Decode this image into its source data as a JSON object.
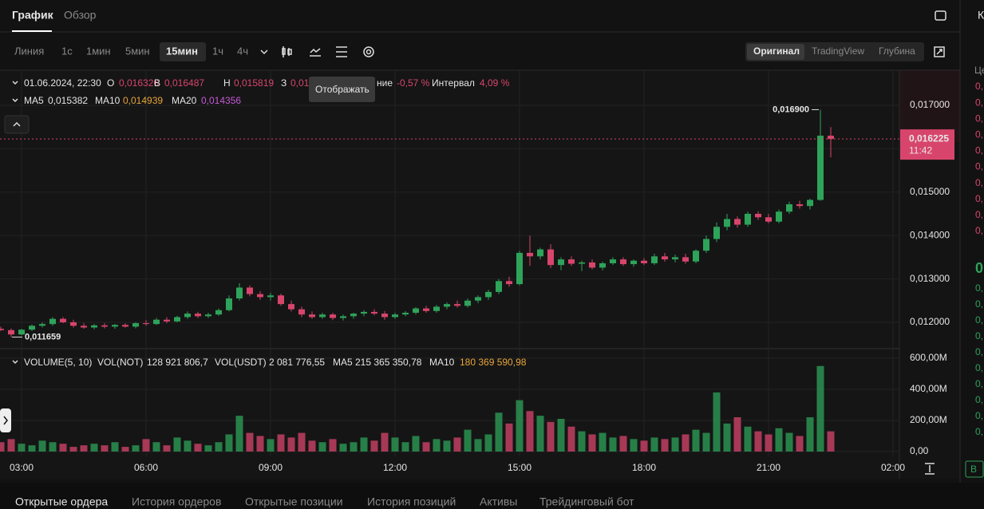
{
  "tabs": [
    "График",
    "Обзор"
  ],
  "timeframes": [
    "Линия",
    "1с",
    "1мин",
    "5мин",
    "15мин",
    "1ч",
    "4ч"
  ],
  "views": [
    "Оригинал",
    "TradingView",
    "Глубина"
  ],
  "tooltip": "Отображать",
  "legend": {
    "date": "01.06.2024, 22:30",
    "o_label": "O",
    "o": "0,016326",
    "h_label": "В",
    "h": "0,016487",
    "l_label": "Н",
    "l": "0,015819",
    "c_label": "З",
    "c": "0,01",
    "change_label": "ние",
    "change": "-0,57 %",
    "range_label": "Интервал",
    "range": "4,09 %"
  },
  "ma_legend": {
    "ma5_label": "MA5",
    "ma5": "0,015382",
    "ma10_label": "MA10",
    "ma10": "0,014939",
    "ma20_label": "MA20",
    "ma20": "0,014356"
  },
  "volume_legend": {
    "title": "VOLUME(5, 10)",
    "vol_not_label": "VOL(NOT)",
    "vol_not": "128 921 806,7",
    "vol_usdt_label": "VOL(USDT)",
    "vol_usdt": "2 081 776,55",
    "ma5_label": "MA5",
    "ma5": "215 365 350,78",
    "ma10_label": "MA10",
    "ma10": "180 369 590,98"
  },
  "bottom_tabs": [
    "Открытые ордера",
    "История ордеров",
    "Открытые позиции",
    "История позиций",
    "Активы",
    "Трейдинговый бот"
  ],
  "side_panel": {
    "tab": "К",
    "header": "Це",
    "rows": [
      "0,",
      "0,",
      "0,",
      "0,",
      "0,",
      "0,",
      "0,",
      "0,",
      "0,",
      "0,",
      "0",
      "0,",
      "0,",
      "0,",
      "0,",
      "0,",
      "0,",
      "0,",
      "0,",
      "0,",
      "0,"
    ],
    "button": "B"
  },
  "chart_data": {
    "type": "candlestick",
    "categories": [
      null,
      null,
      "03:00",
      null,
      null,
      null,
      null,
      null,
      null,
      null,
      null,
      null,
      null,
      null,
      "06:00",
      null,
      null,
      null,
      null,
      null,
      null,
      null,
      null,
      null,
      null,
      null,
      "09:00",
      null,
      null,
      null,
      null,
      null,
      null,
      null,
      null,
      null,
      null,
      null,
      "12:00",
      null,
      null,
      null,
      null,
      null,
      null,
      null,
      null,
      null,
      null,
      null,
      "15:00",
      null,
      null,
      null,
      null,
      null,
      null,
      null,
      null,
      null,
      null,
      null,
      "18:00",
      null,
      null,
      null,
      null,
      null,
      null,
      null,
      null,
      null,
      null,
      null,
      "21:00",
      null,
      null,
      null,
      null,
      null,
      null,
      null,
      null,
      null,
      null,
      null,
      "02:00"
    ],
    "open": [
      0.01185,
      0.01182,
      0.01172,
      0.01183,
      0.01192,
      0.01196,
      0.01208,
      0.012,
      0.01192,
      0.01188,
      0.01193,
      0.0119,
      0.01194,
      0.0119,
      0.01198,
      0.01196,
      0.01206,
      0.01202,
      0.01212,
      0.0122,
      0.01214,
      0.01218,
      0.01228,
      0.01255,
      0.0128,
      0.01265,
      0.01258,
      0.01262,
      0.01242,
      0.0123,
      0.01218,
      0.01212,
      0.01218,
      0.0121,
      0.01214,
      0.0122,
      0.01224,
      0.0122,
      0.01212,
      0.01218,
      0.01222,
      0.01232,
      0.01226,
      0.01236,
      0.01242,
      0.01238,
      0.0125,
      0.01258,
      0.0127,
      0.01295,
      0.01288,
      0.0136,
      0.01352,
      0.01368,
      0.01332,
      0.01345,
      0.01335,
      0.01338,
      0.01326,
      0.01336,
      0.01345,
      0.01334,
      0.01342,
      0.01336,
      0.01352,
      0.01345,
      0.0135,
      0.0134,
      0.01365,
      0.01392,
      0.0142,
      0.01438,
      0.01425,
      0.0145,
      0.01442,
      0.01432,
      0.01455,
      0.01472,
      0.01468,
      0.01482,
      0.0163,
      null,
      null,
      null,
      null,
      null,
      null
    ],
    "high": [
      0.0119,
      0.01186,
      0.01185,
      0.01195,
      0.012,
      0.01212,
      0.01212,
      0.01206,
      0.01198,
      0.01196,
      0.01198,
      0.01196,
      0.01198,
      0.012,
      0.01205,
      0.0121,
      0.01212,
      0.01215,
      0.01225,
      0.01224,
      0.01222,
      0.01232,
      0.01262,
      0.0129,
      0.01285,
      0.01272,
      0.01268,
      0.01266,
      0.0125,
      0.01236,
      0.01225,
      0.01222,
      0.01222,
      0.01218,
      0.01222,
      0.01228,
      0.0123,
      0.01226,
      0.01222,
      0.01226,
      0.01235,
      0.01238,
      0.0124,
      0.01246,
      0.0125,
      0.01255,
      0.01262,
      0.01275,
      0.013,
      0.01305,
      0.01365,
      0.014,
      0.01372,
      0.0138,
      0.0135,
      0.01352,
      0.01342,
      0.01345,
      0.0134,
      0.0135,
      0.0135,
      0.01345,
      0.01348,
      0.01358,
      0.0136,
      0.01356,
      0.01358,
      0.01368,
      0.014,
      0.0143,
      0.0145,
      0.01444,
      0.01455,
      0.01456,
      0.0145,
      0.0146,
      0.01478,
      0.0148,
      0.01485,
      0.0169,
      0.0165,
      null,
      null,
      null,
      null,
      null,
      null
    ],
    "low": [
      0.0118,
      0.011659,
      0.0117,
      0.0118,
      0.01188,
      0.01192,
      0.01198,
      0.01188,
      0.01185,
      0.01184,
      0.01186,
      0.01185,
      0.01188,
      0.01186,
      0.01192,
      0.01194,
      0.01198,
      0.012,
      0.01208,
      0.0121,
      0.0121,
      0.01215,
      0.01225,
      0.0125,
      0.0126,
      0.01252,
      0.0125,
      0.01238,
      0.01225,
      0.01212,
      0.01208,
      0.01208,
      0.01205,
      0.01204,
      0.01208,
      0.01214,
      0.01216,
      0.01206,
      0.01208,
      0.01214,
      0.01218,
      0.01222,
      0.01222,
      0.0123,
      0.01234,
      0.01234,
      0.01244,
      0.01252,
      0.01265,
      0.01282,
      0.01285,
      0.0133,
      0.01345,
      0.01325,
      0.0132,
      0.0133,
      0.01318,
      0.01322,
      0.0132,
      0.01332,
      0.0133,
      0.01328,
      0.01332,
      0.01332,
      0.0134,
      0.01338,
      0.01335,
      0.01336,
      0.0136,
      0.01385,
      0.01412,
      0.01418,
      0.0142,
      0.01436,
      0.01428,
      0.01428,
      0.0145,
      0.01462,
      0.0146,
      0.0148,
      0.0158,
      null,
      null,
      null,
      null,
      null,
      null
    ],
    "close": [
      0.01182,
      0.01172,
      0.01183,
      0.01192,
      0.01196,
      0.01208,
      0.012,
      0.01192,
      0.01188,
      0.01193,
      0.0119,
      0.01194,
      0.0119,
      0.01198,
      0.01196,
      0.01206,
      0.01202,
      0.01212,
      0.0122,
      0.01214,
      0.01218,
      0.01228,
      0.01255,
      0.0128,
      0.01265,
      0.01258,
      0.01262,
      0.01242,
      0.0123,
      0.01218,
      0.01212,
      0.01218,
      0.0121,
      0.01214,
      0.0122,
      0.01224,
      0.0122,
      0.01212,
      0.01218,
      0.01222,
      0.01232,
      0.01226,
      0.01236,
      0.01242,
      0.01238,
      0.0125,
      0.01258,
      0.0127,
      0.01295,
      0.01288,
      0.0136,
      0.01352,
      0.01368,
      0.01332,
      0.01345,
      0.01335,
      0.01338,
      0.01326,
      0.01336,
      0.01345,
      0.01334,
      0.01342,
      0.01336,
      0.01352,
      0.01345,
      0.0135,
      0.0134,
      0.01365,
      0.01392,
      0.0142,
      0.01438,
      0.01425,
      0.0145,
      0.01442,
      0.01432,
      0.01455,
      0.01472,
      0.01468,
      0.01482,
      0.0163,
      0.016225,
      null,
      null,
      null,
      null,
      null,
      null
    ],
    "volume": [
      60000000,
      80000000,
      50000000,
      40000000,
      70000000,
      60000000,
      50000000,
      30000000,
      40000000,
      50000000,
      40000000,
      60000000,
      30000000,
      40000000,
      80000000,
      60000000,
      40000000,
      90000000,
      70000000,
      50000000,
      40000000,
      60000000,
      110000000,
      230000000,
      120000000,
      100000000,
      80000000,
      110000000,
      90000000,
      120000000,
      70000000,
      60000000,
      80000000,
      50000000,
      60000000,
      90000000,
      70000000,
      120000000,
      90000000,
      60000000,
      100000000,
      60000000,
      80000000,
      70000000,
      90000000,
      140000000,
      80000000,
      110000000,
      250000000,
      180000000,
      330000000,
      260000000,
      230000000,
      190000000,
      210000000,
      160000000,
      130000000,
      110000000,
      120000000,
      90000000,
      100000000,
      80000000,
      70000000,
      90000000,
      80000000,
      90000000,
      110000000,
      140000000,
      120000000,
      380000000,
      180000000,
      220000000,
      160000000,
      130000000,
      110000000,
      150000000,
      120000000,
      100000000,
      220000000,
      550000000,
      130000000,
      null,
      null,
      null,
      null,
      null,
      null
    ],
    "up_color": "#2ea35a",
    "down_color": "#d8456c",
    "ylim": [
      0.011393,
      0.017809
    ],
    "yticks": [
      {
        "value": 0.012,
        "label": "0,012000"
      },
      {
        "value": 0.013,
        "label": "0,013000"
      },
      {
        "value": 0.014,
        "label": "0,014000"
      },
      {
        "value": 0.015,
        "label": "0,015000"
      },
      {
        "value": 0.016,
        "label": "0,016000"
      },
      {
        "value": 0.017,
        "label": "0,017000"
      }
    ],
    "y2lim": [
      -31000000,
      646000000
    ],
    "y2ticks": [
      {
        "value": 0,
        "label": "0,00"
      },
      {
        "value": 200000000,
        "label": "200,00M"
      },
      {
        "value": 400000000,
        "label": "400,00M"
      },
      {
        "value": 600000000,
        "label": "600,00M"
      }
    ],
    "grid": true,
    "annotations": {
      "high": {
        "value": 0.0169,
        "label": "0,016900"
      },
      "low": {
        "value": 0.011659,
        "label": "0,011659"
      },
      "last": {
        "value": 0.016225,
        "label": "0,016225"
      },
      "countdown": "11:42"
    }
  }
}
